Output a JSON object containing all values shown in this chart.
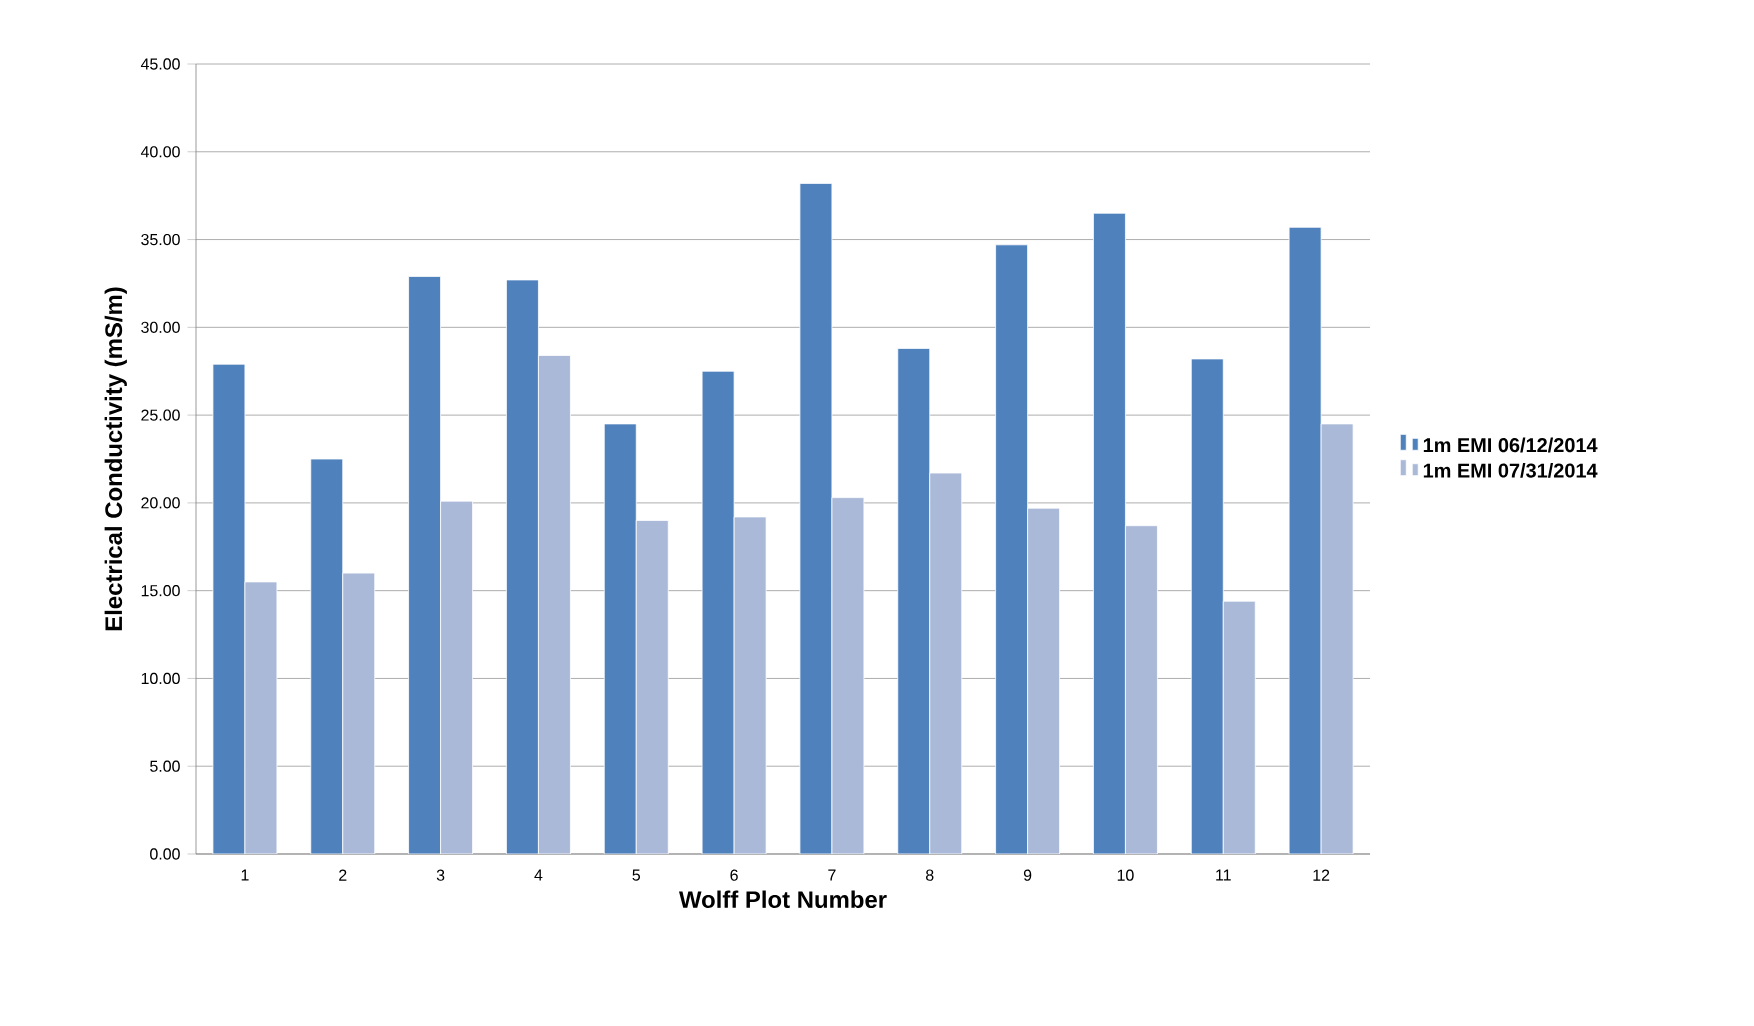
{
  "chart_data": {
    "type": "bar",
    "xlabel": "Wolff Plot Number",
    "ylabel": "Electrical Conductivity (mS/m)",
    "categories": [
      "1",
      "2",
      "3",
      "4",
      "5",
      "6",
      "7",
      "8",
      "9",
      "10",
      "11",
      "12"
    ],
    "series": [
      {
        "name": "1m EMI 06/12/2014",
        "color": "#4f81bd",
        "values": [
          27.9,
          22.5,
          32.9,
          32.7,
          24.5,
          27.5,
          38.2,
          28.8,
          34.7,
          36.5,
          28.2,
          35.7
        ]
      },
      {
        "name": "1m EMI 07/31/2014",
        "color": "#aab9d7",
        "values": [
          15.5,
          16.0,
          20.1,
          28.4,
          19.0,
          19.2,
          20.3,
          21.7,
          19.7,
          18.7,
          14.4,
          24.5
        ]
      }
    ],
    "ylim": [
      0,
      45
    ],
    "yticks": [
      {
        "value": 0,
        "label": "0.00"
      },
      {
        "value": 5,
        "label": "5.00"
      },
      {
        "value": 10,
        "label": "10.00"
      },
      {
        "value": 15,
        "label": "15.00"
      },
      {
        "value": 20,
        "label": "20.00"
      },
      {
        "value": 25,
        "label": "25.00"
      },
      {
        "value": 30,
        "label": "30.00"
      },
      {
        "value": 35,
        "label": "35.00"
      },
      {
        "value": 40,
        "label": "40.00"
      },
      {
        "value": 45,
        "label": "45.00"
      }
    ],
    "grid": "y",
    "legend": "right"
  }
}
